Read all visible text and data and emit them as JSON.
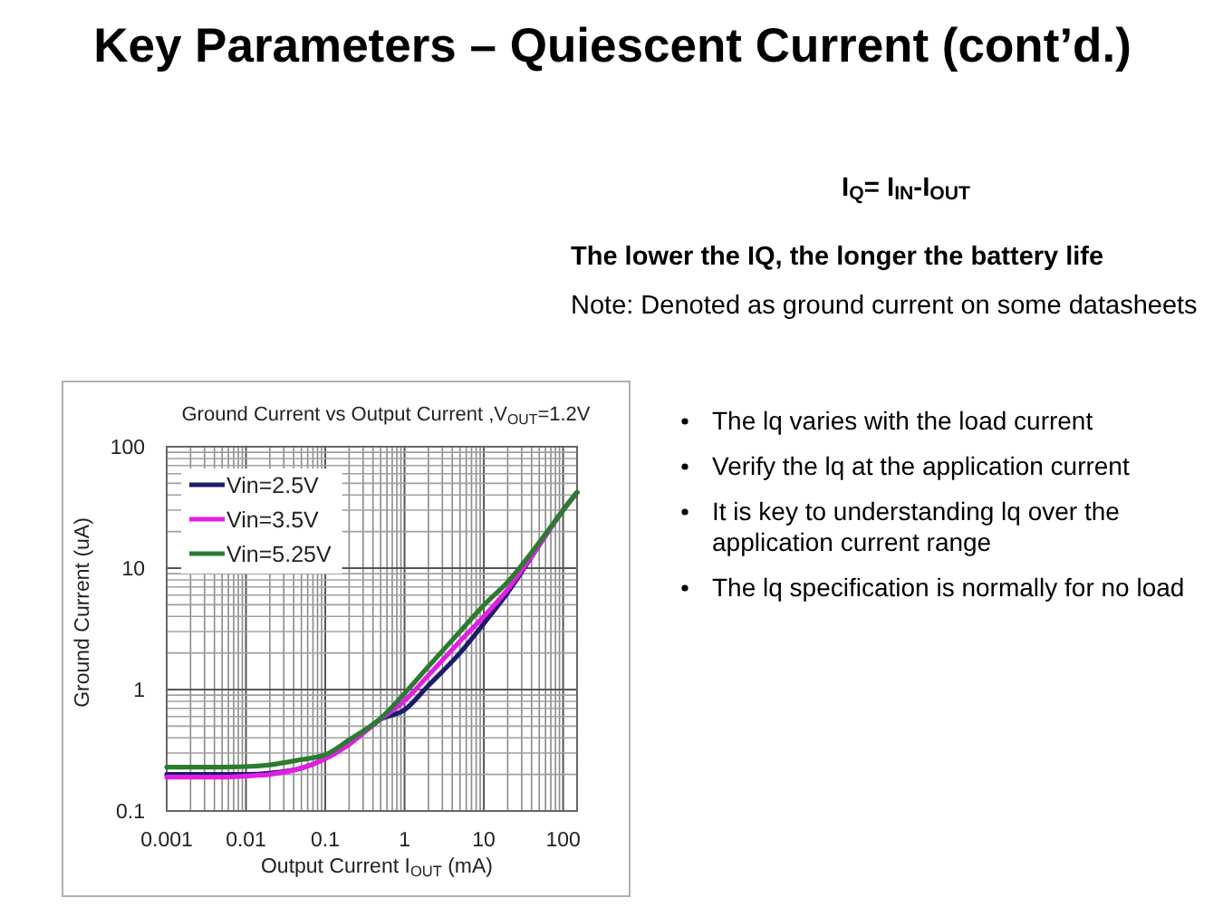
{
  "chart_data": {
    "type": "line",
    "title": "Key Parameters – Quiescent Current (cont’d.)",
    "subtitle": "Ground Current vs Output Current ,V$_{OUT}$=1.2V",
    "xlabel": "Output Current I$_{OUT}$ (mA)",
    "ylabel": "Ground Current (uA)",
    "annotations": [
      "I$_{Q}$= I$_{IN}$-I$_{OUT}$",
      "The lower the IQ, the longer the battery life",
      "Note: Denoted as ground current on some datasheets",
      "The lq varies with the load current",
      "Verify the lq at the application current",
      "It is key to understanding lq over the application current range",
      "The lq specification is normally for no load"
    ],
    "x": [
      0.001,
      0.002,
      0.005,
      0.01,
      0.02,
      0.05,
      0.1,
      0.2,
      0.5,
      1,
      2,
      5,
      10,
      20,
      50,
      100,
      150
    ],
    "series": [
      {
        "name": "Vin=2.5V",
        "color": "#1c1c6b",
        "values": [
          0.2,
          0.2,
          0.2,
          0.2,
          0.205,
          0.225,
          0.27,
          0.355,
          0.57,
          0.68,
          1.08,
          2.0,
          3.5,
          6.3,
          15.5,
          30,
          42
        ]
      },
      {
        "name": "Vin=3.5V",
        "color": "#e41ee4",
        "values": [
          0.19,
          0.19,
          0.19,
          0.194,
          0.2,
          0.225,
          0.27,
          0.355,
          0.57,
          0.81,
          1.31,
          2.5,
          4.0,
          6.7,
          15.5,
          30,
          42
        ]
      },
      {
        "name": "Vin=5.25V",
        "color": "#2a7d2e",
        "values": [
          0.23,
          0.23,
          0.23,
          0.232,
          0.24,
          0.265,
          0.29,
          0.385,
          0.58,
          0.93,
          1.55,
          3.0,
          4.95,
          7.7,
          16.3,
          30,
          42
        ]
      }
    ],
    "xlim": [
      0.001,
      150
    ],
    "ylim": [
      0.1,
      100
    ],
    "xticks": [
      0.001,
      {
        "value": 0.002,
        "label": null
      },
      {
        "value": 0.003,
        "label": null
      },
      {
        "value": 0.004,
        "label": null
      },
      {
        "value": 0.005,
        "label": null
      },
      {
        "value": 0.006,
        "label": null
      },
      {
        "value": 0.007,
        "label": null
      },
      {
        "value": 0.008,
        "label": null
      },
      {
        "value": 0.009,
        "label": null
      },
      0.01,
      {
        "value": 0.02,
        "label": null
      },
      {
        "value": 0.03,
        "label": null
      },
      {
        "value": 0.04,
        "label": null
      },
      {
        "value": 0.05,
        "label": null
      },
      {
        "value": 0.06,
        "label": null
      },
      {
        "value": 0.07,
        "label": null
      },
      {
        "value": 0.08,
        "label": null
      },
      {
        "value": 0.09,
        "label": null
      },
      0.1,
      {
        "value": 0.2,
        "label": null
      },
      {
        "value": 0.3,
        "label": null
      },
      {
        "value": 0.4,
        "label": null
      },
      {
        "value": 0.5,
        "label": null
      },
      {
        "value": 0.6,
        "label": null
      },
      {
        "value": 0.7,
        "label": null
      },
      {
        "value": 0.8,
        "label": null
      },
      {
        "value": 0.9,
        "label": null
      },
      1,
      {
        "value": 2,
        "label": null
      },
      {
        "value": 3,
        "label": null
      },
      {
        "value": 4,
        "label": null
      },
      {
        "value": 5,
        "label": null
      },
      {
        "value": 6,
        "label": null
      },
      {
        "value": 7,
        "label": null
      },
      {
        "value": 8,
        "label": null
      },
      {
        "value": 9,
        "label": null
      },
      10,
      {
        "value": 20,
        "label": null
      },
      {
        "value": 30,
        "label": null
      },
      {
        "value": 40,
        "label": null
      },
      {
        "value": 50,
        "label": null
      },
      {
        "value": 60,
        "label": null
      },
      {
        "value": 70,
        "label": null
      },
      {
        "value": 80,
        "label": null
      },
      {
        "value": 90,
        "label": null
      },
      100
    ],
    "yticks": [
      0.1,
      {
        "value": 0.2,
        "label": null
      },
      {
        "value": 0.3,
        "label": null
      },
      {
        "value": 0.4,
        "label": null
      },
      {
        "value": 0.5,
        "label": null
      },
      {
        "value": 0.6,
        "label": null
      },
      {
        "value": 0.7,
        "label": null
      },
      {
        "value": 0.8,
        "label": null
      },
      {
        "value": 0.9,
        "label": null
      },
      1,
      {
        "value": 2,
        "label": null
      },
      {
        "value": 3,
        "label": null
      },
      {
        "value": 4,
        "label": null
      },
      {
        "value": 5,
        "label": null
      },
      {
        "value": 6,
        "label": null
      },
      {
        "value": 7,
        "label": null
      },
      {
        "value": 8,
        "label": null
      },
      {
        "value": 9,
        "label": null
      },
      10,
      {
        "value": 20,
        "label": null
      },
      {
        "value": 30,
        "label": null
      },
      {
        "value": 40,
        "label": null
      },
      {
        "value": 50,
        "label": null
      },
      {
        "value": 60,
        "label": null
      },
      {
        "value": 70,
        "label": null
      },
      {
        "value": 80,
        "label": null
      },
      {
        "value": 90,
        "label": null
      },
      100
    ],
    "log": "xy",
    "grid": true,
    "legend": "top left",
    "line_style": "solid"
  }
}
